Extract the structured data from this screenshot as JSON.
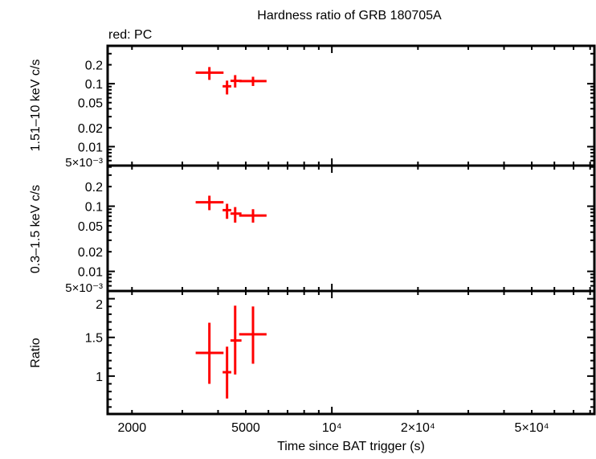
{
  "chart_data": [
    {
      "type": "scatter",
      "title": "Hardness ratio of GRB 180705A",
      "legend_note": "red: PC",
      "ylabel": "1.51–10 keV c/s",
      "yscale": "log",
      "ylim": [
        0.005,
        0.4
      ],
      "yticks": [
        {
          "v": 0.2,
          "label": "0.2"
        },
        {
          "v": 0.1,
          "label": "0.1"
        },
        {
          "v": 0.05,
          "label": "0.05"
        },
        {
          "v": 0.02,
          "label": "0.02"
        },
        {
          "v": 0.01,
          "label": "0.01"
        },
        {
          "v": 0.005,
          "label": "5×10⁻³"
        }
      ],
      "color": "#ff0000",
      "series": [
        {
          "points": [
            {
              "x": 3730,
              "xlo": 3340,
              "xhi": 4180,
              "y": 0.15,
              "ylo": 0.115,
              "yhi": 0.184
            },
            {
              "x": 4300,
              "xlo": 4150,
              "xhi": 4450,
              "y": 0.091,
              "ylo": 0.0675,
              "yhi": 0.112
            },
            {
              "x": 4590,
              "xlo": 4420,
              "xhi": 4830,
              "y": 0.111,
              "ylo": 0.087,
              "yhi": 0.137
            },
            {
              "x": 5300,
              "xlo": 4740,
              "xhi": 5910,
              "y": 0.11,
              "ylo": 0.092,
              "yhi": 0.129
            }
          ]
        }
      ]
    },
    {
      "type": "scatter",
      "ylabel": "0.3–1.5 keV c/s",
      "yscale": "log",
      "ylim": [
        0.005,
        0.42
      ],
      "yticks": [
        {
          "v": 0.2,
          "label": "0.2"
        },
        {
          "v": 0.1,
          "label": "0.1"
        },
        {
          "v": 0.05,
          "label": "0.05"
        },
        {
          "v": 0.02,
          "label": "0.02"
        },
        {
          "v": 0.01,
          "label": "0.01"
        },
        {
          "v": 0.005,
          "label": "5×10⁻³"
        }
      ],
      "color": "#ff0000",
      "series": [
        {
          "points": [
            {
              "x": 3730,
              "xlo": 3340,
              "xhi": 4180,
              "y": 0.115,
              "ylo": 0.087,
              "yhi": 0.145
            },
            {
              "x": 4300,
              "xlo": 4150,
              "xhi": 4450,
              "y": 0.087,
              "ylo": 0.064,
              "yhi": 0.109
            },
            {
              "x": 4590,
              "xlo": 4420,
              "xhi": 4830,
              "y": 0.077,
              "ylo": 0.056,
              "yhi": 0.097
            },
            {
              "x": 5300,
              "xlo": 4740,
              "xhi": 5910,
              "y": 0.072,
              "ylo": 0.056,
              "yhi": 0.09
            }
          ]
        }
      ]
    },
    {
      "type": "scatter",
      "ylabel": "Ratio",
      "yscale": "linear",
      "ylim": [
        0.51,
        2.1
      ],
      "yticks": [
        {
          "v": 1,
          "label": "1"
        },
        {
          "v": 1.5,
          "label": "1.5"
        },
        {
          "v": 2,
          "label": "2"
        }
      ],
      "xlabel": "Time since BAT trigger (s)",
      "xscale": "log",
      "xlim": [
        1644,
        82800
      ],
      "xticks": [
        {
          "v": 2000,
          "label": "2000"
        },
        {
          "v": 5000,
          "label": "5000"
        },
        {
          "v": 10000,
          "label": "10⁴"
        },
        {
          "v": 20000,
          "label": "2×10⁴"
        },
        {
          "v": 50000,
          "label": "5×10⁴"
        }
      ],
      "color": "#ff0000",
      "series": [
        {
          "points": [
            {
              "x": 3730,
              "xlo": 3340,
              "xhi": 4180,
              "y": 1.3,
              "ylo": 0.9,
              "yhi": 1.69
            },
            {
              "x": 4300,
              "xlo": 4150,
              "xhi": 4450,
              "y": 1.05,
              "ylo": 0.71,
              "yhi": 1.38
            },
            {
              "x": 4590,
              "xlo": 4420,
              "xhi": 4830,
              "y": 1.46,
              "ylo": 1.02,
              "yhi": 1.91
            },
            {
              "x": 5300,
              "xlo": 4740,
              "xhi": 5910,
              "y": 1.54,
              "ylo": 1.16,
              "yhi": 1.9
            }
          ]
        }
      ]
    }
  ]
}
